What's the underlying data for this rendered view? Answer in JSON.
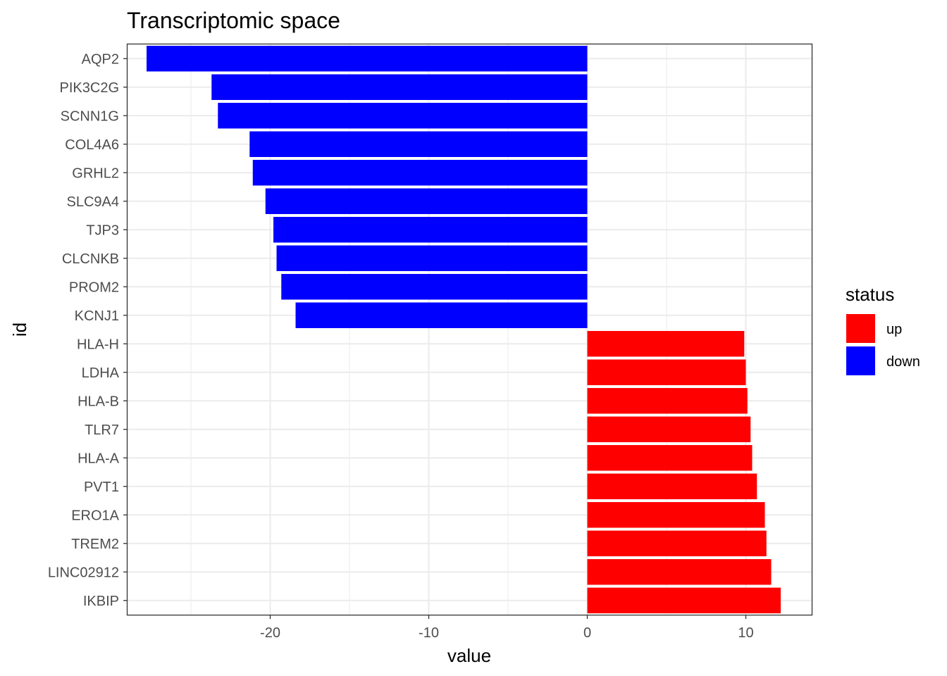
{
  "chart_data": {
    "type": "bar",
    "orientation": "horizontal",
    "title": "Transcriptomic space",
    "xlabel": "value",
    "ylabel": "id",
    "xlim": [
      -29,
      14.2
    ],
    "xticks": [
      -20,
      -10,
      0,
      10
    ],
    "xtick_labels": [
      "-20",
      "-10",
      "0",
      "10"
    ],
    "grid": true,
    "legend_position": "right",
    "legend": {
      "title": "status",
      "entries": [
        {
          "label": "up",
          "color": "#ff0000"
        },
        {
          "label": "down",
          "color": "#0000ff"
        }
      ]
    },
    "categories": [
      "AQP2",
      "PIK3C2G",
      "SCNN1G",
      "COL4A6",
      "GRHL2",
      "SLC9A4",
      "TJP3",
      "CLCNKB",
      "PROM2",
      "KCNJ1",
      "HLA-H",
      "LDHA",
      "HLA-B",
      "TLR7",
      "HLA-A",
      "PVT1",
      "ERO1A",
      "TREM2",
      "LINC02912",
      "IKBIP"
    ],
    "values": [
      -27.8,
      -23.7,
      -23.3,
      -21.3,
      -21.1,
      -20.3,
      -19.8,
      -19.6,
      -19.3,
      -18.4,
      9.9,
      10.0,
      10.1,
      10.3,
      10.4,
      10.7,
      11.2,
      11.3,
      11.6,
      12.2
    ],
    "status": [
      "down",
      "down",
      "down",
      "down",
      "down",
      "down",
      "down",
      "down",
      "down",
      "down",
      "up",
      "up",
      "up",
      "up",
      "up",
      "up",
      "up",
      "up",
      "up",
      "up"
    ],
    "colors": {
      "up": "#ff0000",
      "down": "#0000ff"
    }
  }
}
